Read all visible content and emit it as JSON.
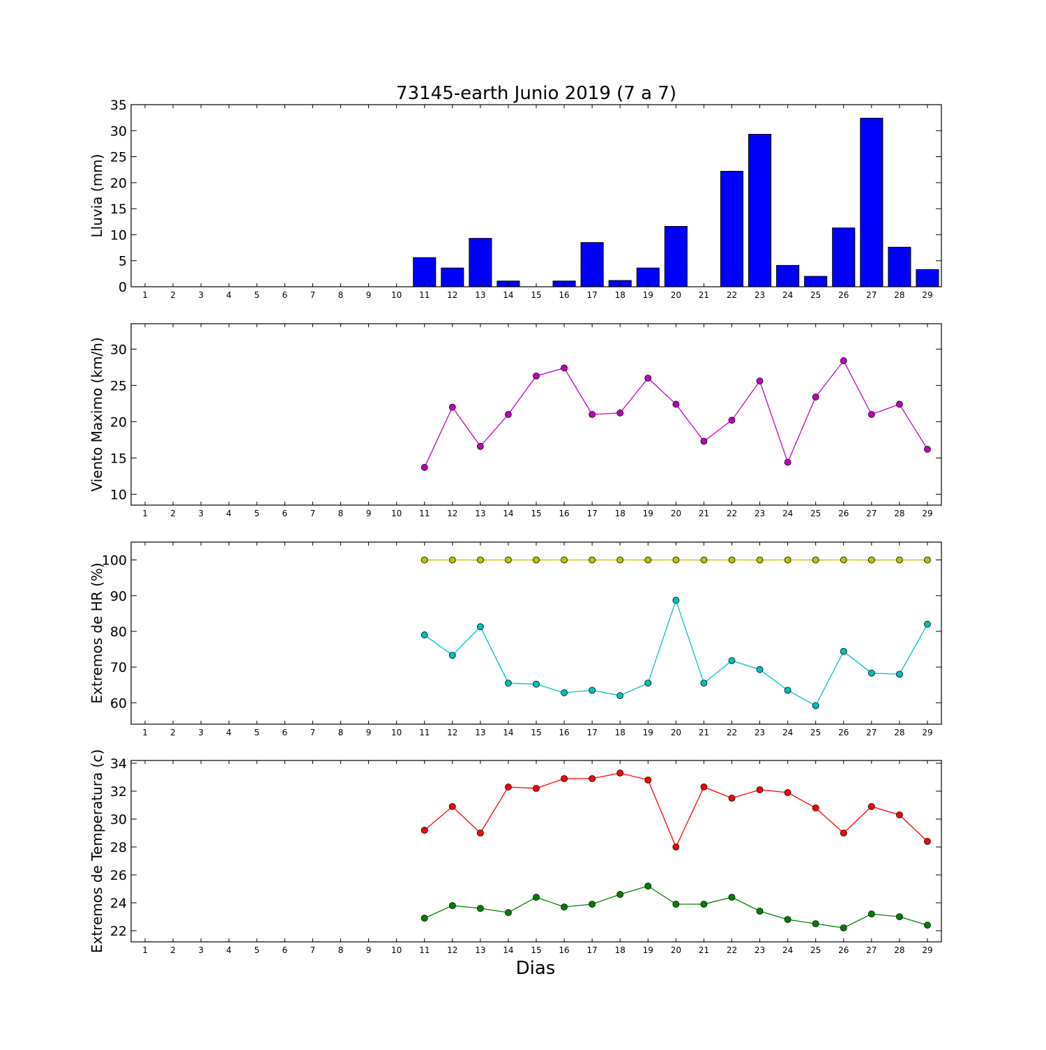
{
  "chart_data": [
    {
      "type": "bar",
      "title": "73145-earth Junio 2019  (7 a 7)",
      "ylabel": "Lluvia (mm)",
      "xlabel": "",
      "categories": [
        "1",
        "2",
        "3",
        "4",
        "5",
        "6",
        "7",
        "8",
        "9",
        "10",
        "11",
        "12",
        "13",
        "14",
        "15",
        "16",
        "17",
        "18",
        "19",
        "20",
        "21",
        "22",
        "23",
        "24",
        "25",
        "26",
        "27",
        "28",
        "29"
      ],
      "values": [
        0,
        0,
        0,
        0,
        0,
        0,
        0,
        0,
        0,
        0,
        5.6,
        3.6,
        9.3,
        1.1,
        0,
        1.1,
        8.5,
        1.2,
        3.6,
        11.6,
        0,
        22.2,
        29.3,
        4.1,
        2.0,
        11.3,
        32.4,
        7.6,
        3.3
      ],
      "ylim": [
        0,
        35
      ],
      "yticks": [
        "0",
        "5",
        "10",
        "15",
        "20",
        "25",
        "30",
        "35"
      ],
      "bar_color": "#0000ff",
      "grid": false
    },
    {
      "type": "line",
      "title": "",
      "ylabel": "Viento Maximo (km/h)",
      "xlabel": "",
      "categories": [
        "1",
        "2",
        "3",
        "4",
        "5",
        "6",
        "7",
        "8",
        "9",
        "10",
        "11",
        "12",
        "13",
        "14",
        "15",
        "16",
        "17",
        "18",
        "19",
        "20",
        "21",
        "22",
        "23",
        "24",
        "25",
        "26",
        "27",
        "28",
        "29"
      ],
      "x": [
        11,
        12,
        13,
        14,
        15,
        16,
        17,
        18,
        19,
        20,
        21,
        22,
        23,
        24,
        25,
        26,
        27,
        28,
        29
      ],
      "series": [
        {
          "values": [
            13.7,
            22.0,
            16.6,
            21.0,
            26.3,
            27.4,
            21.0,
            21.2,
            26.0,
            22.4,
            17.3,
            20.2,
            25.6,
            14.4,
            23.4,
            28.4,
            21.0,
            22.4,
            16.2
          ],
          "color": "#bf00bf"
        }
      ],
      "ylim": [
        8.5,
        33.5
      ],
      "yticks": [
        "10",
        "15",
        "20",
        "25",
        "30"
      ],
      "grid": false
    },
    {
      "type": "line",
      "title": "",
      "ylabel": "Extremos de HR (%)",
      "xlabel": "",
      "categories": [
        "1",
        "2",
        "3",
        "4",
        "5",
        "6",
        "7",
        "8",
        "9",
        "10",
        "11",
        "12",
        "13",
        "14",
        "15",
        "16",
        "17",
        "18",
        "19",
        "20",
        "21",
        "22",
        "23",
        "24",
        "25",
        "26",
        "27",
        "28",
        "29"
      ],
      "x": [
        11,
        12,
        13,
        14,
        15,
        16,
        17,
        18,
        19,
        20,
        21,
        22,
        23,
        24,
        25,
        26,
        27,
        28,
        29
      ],
      "series": [
        {
          "values": [
            100,
            100,
            100,
            100,
            100,
            100,
            100,
            100,
            100,
            100,
            100,
            100,
            100,
            100,
            100,
            100,
            100,
            100,
            100
          ],
          "color": "#bfbf00"
        },
        {
          "values": [
            79,
            73.3,
            81.3,
            65.5,
            65.2,
            62.8,
            63.5,
            62.0,
            65.5,
            88.7,
            65.5,
            71.8,
            69.3,
            63.5,
            59.2,
            74.4,
            68.3,
            68.0,
            82.0
          ],
          "color": "#00bfbf"
        }
      ],
      "ylim": [
        54,
        105
      ],
      "yticks": [
        "60",
        "70",
        "80",
        "90",
        "100"
      ],
      "grid": false
    },
    {
      "type": "line",
      "title": "",
      "ylabel": "Extremos de Temperatura (c)",
      "xlabel": "Dias",
      "categories": [
        "1",
        "2",
        "3",
        "4",
        "5",
        "6",
        "7",
        "8",
        "9",
        "10",
        "11",
        "12",
        "13",
        "14",
        "15",
        "16",
        "17",
        "18",
        "19",
        "20",
        "21",
        "22",
        "23",
        "24",
        "25",
        "26",
        "27",
        "28",
        "29"
      ],
      "x": [
        11,
        12,
        13,
        14,
        15,
        16,
        17,
        18,
        19,
        20,
        21,
        22,
        23,
        24,
        25,
        26,
        27,
        28,
        29
      ],
      "series": [
        {
          "values": [
            29.2,
            30.9,
            29.0,
            32.3,
            32.2,
            32.9,
            32.9,
            33.3,
            32.8,
            28.0,
            32.3,
            31.5,
            32.1,
            31.9,
            30.8,
            29.0,
            30.9,
            30.3,
            28.4
          ],
          "color": "#ff0000"
        },
        {
          "values": [
            22.9,
            23.8,
            23.6,
            23.3,
            24.4,
            23.7,
            23.9,
            24.6,
            25.2,
            23.9,
            23.9,
            24.4,
            23.4,
            22.8,
            22.5,
            22.2,
            23.2,
            23.0,
            22.4
          ],
          "color": "#008000"
        }
      ],
      "ylim": [
        21.2,
        34.2
      ],
      "yticks": [
        "22",
        "24",
        "26",
        "28",
        "30",
        "32",
        "34"
      ],
      "grid": false
    }
  ]
}
